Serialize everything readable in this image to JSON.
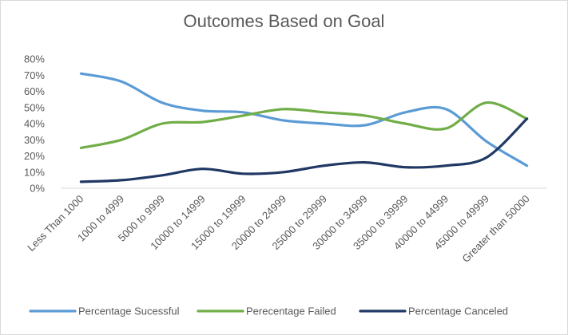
{
  "chart_data": {
    "type": "line",
    "title": "Outcomes Based on Goal",
    "categories": [
      "Less Than 1000",
      "1000 to 4999",
      "5000 to 9999",
      "10000 to 14999",
      "15000 to 19999",
      "20000 to 24999",
      "25000 to 29999",
      "30000 to 34999",
      "35000 to 39999",
      "40000 to 44999",
      "45000 to 49999",
      "Greater than 50000"
    ],
    "series": [
      {
        "name": "Percentage Sucessful",
        "color": "#5b9bd5",
        "values": [
          0.71,
          0.66,
          0.53,
          0.48,
          0.47,
          0.42,
          0.4,
          0.39,
          0.47,
          0.49,
          0.29,
          0.14
        ]
      },
      {
        "name": "Perecentage Failed",
        "color": "#70ad47",
        "values": [
          0.25,
          0.3,
          0.4,
          0.41,
          0.45,
          0.49,
          0.47,
          0.45,
          0.4,
          0.37,
          0.53,
          0.43
        ]
      },
      {
        "name": "Percentage Canceled",
        "color": "#203864",
        "values": [
          0.04,
          0.05,
          0.08,
          0.12,
          0.09,
          0.1,
          0.14,
          0.16,
          0.13,
          0.14,
          0.19,
          0.43
        ]
      }
    ],
    "ylim": [
      0,
      0.8
    ],
    "yticks": [
      "0%",
      "10%",
      "20%",
      "30%",
      "40%",
      "50%",
      "60%",
      "70%",
      "80%"
    ],
    "grid": false,
    "legend_position": "bottom"
  }
}
